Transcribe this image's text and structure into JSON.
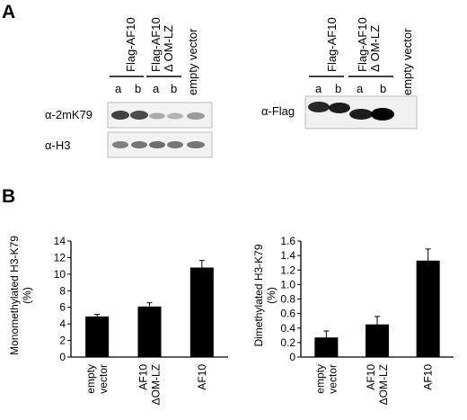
{
  "panels": {
    "a": "A",
    "b": "B"
  },
  "blot_left": {
    "groups": [
      "Flag-AF10",
      "Flag-AF10\nΔ OM-LZ",
      "empty vector"
    ],
    "lane_letters": [
      "a",
      "b",
      "a",
      "b"
    ],
    "rows": [
      {
        "label": "α-2mK79",
        "intensities": [
          0.85,
          0.8,
          0.3,
          0.28,
          0.38
        ]
      },
      {
        "label": "α-H3",
        "intensities": [
          0.55,
          0.6,
          0.62,
          0.58,
          0.6
        ]
      }
    ]
  },
  "blot_right": {
    "groups": [
      "Flag-AF10",
      "Flag-AF10\nΔ OM-LZ",
      "empty vector"
    ],
    "lane_letters": [
      "a",
      "b",
      "a",
      "b"
    ],
    "rows": [
      {
        "label": "α-Flag",
        "intensities": [
          0.9,
          0.95,
          0.95,
          1.0,
          0.0
        ]
      }
    ]
  },
  "chart_data": [
    {
      "type": "bar",
      "title": "",
      "ylabel": "Monomethylated H3-K79\n(%)",
      "xlabel": "",
      "categories": [
        "empty\nvector",
        "AF10\nΔOM-LZ",
        "AF10"
      ],
      "values": [
        4.9,
        6.1,
        10.8
      ],
      "errors": [
        0.25,
        0.45,
        0.85
      ],
      "ylim": [
        0,
        14
      ],
      "yticks": [
        "0",
        "2",
        "4",
        "6",
        "8",
        "10",
        "12",
        "14"
      ],
      "color": "#000000"
    },
    {
      "type": "bar",
      "title": "",
      "ylabel": "Dimethylated H3-K79\n(%)",
      "xlabel": "",
      "categories": [
        "empty\nvector",
        "AF10\nΔOM-LZ",
        "AF10"
      ],
      "values": [
        0.27,
        0.45,
        1.33
      ],
      "errors": [
        0.09,
        0.11,
        0.16
      ],
      "ylim": [
        0,
        1.6
      ],
      "yticks": [
        "0",
        "0.2",
        "0.4",
        "0.6",
        "0.8",
        "1.0",
        "1.2",
        "1.4",
        "1.6"
      ],
      "color": "#000000"
    }
  ]
}
